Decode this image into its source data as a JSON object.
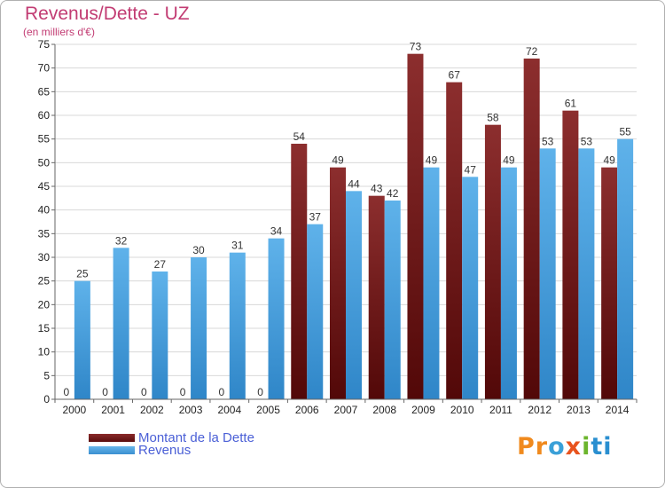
{
  "header": {
    "title": "Revenus/Dette - UZ",
    "subtitle": "(en milliers d'€)"
  },
  "chart_data": {
    "type": "bar",
    "title": "Revenus/Dette - UZ",
    "subtitle": "(en milliers d'€)",
    "categories": [
      "2000",
      "2001",
      "2002",
      "2003",
      "2004",
      "2005",
      "2006",
      "2007",
      "2008",
      "2009",
      "2010",
      "2011",
      "2012",
      "2013",
      "2014"
    ],
    "series": [
      {
        "name": "Montant de la Dette",
        "values": [
          0,
          0,
          0,
          0,
          0,
          0,
          54,
          49,
          43,
          73,
          67,
          58,
          72,
          61,
          49
        ],
        "color": "#6e1a1a"
      },
      {
        "name": "Revenus",
        "values": [
          25,
          32,
          27,
          30,
          31,
          34,
          37,
          44,
          42,
          49,
          47,
          49,
          53,
          53,
          55
        ],
        "color": "#4fa6e0"
      }
    ],
    "yticks": [
      0,
      5,
      10,
      15,
      20,
      25,
      30,
      35,
      40,
      45,
      50,
      55,
      60,
      65,
      70,
      75
    ],
    "ylim": [
      0,
      75
    ],
    "grid": true,
    "legend_position": "bottom-left"
  },
  "legend": {
    "items": [
      {
        "label": "Montant de la Dette"
      },
      {
        "label": "Revenus"
      }
    ]
  },
  "logo": {
    "parts": [
      "Pr",
      "o",
      "x",
      "i",
      "ti"
    ]
  }
}
